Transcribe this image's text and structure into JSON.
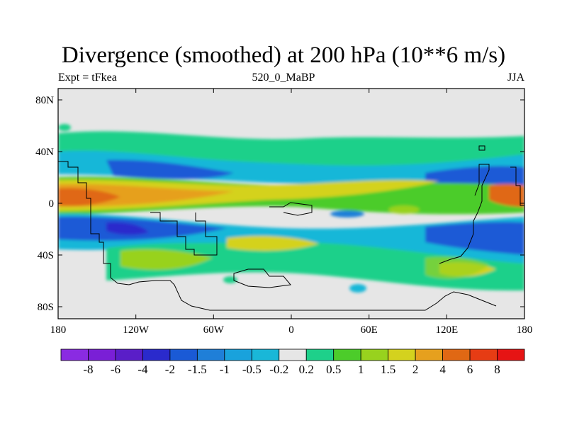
{
  "title": "Divergence (smoothed) at 200 hPa (10**6 m/s)",
  "left_label": "Expt = tFkea",
  "center_label": "520_0_MaBP",
  "right_label": "JJA",
  "lat_ticks": [
    "80N",
    "40N",
    "0",
    "40S",
    "80S"
  ],
  "lon_ticks": [
    "180",
    "120W",
    "60W",
    "0",
    "60E",
    "120E",
    "180"
  ],
  "colorbar": {
    "colors": [
      "#8a2be2",
      "#7a1fd6",
      "#5a1ec8",
      "#2a2acc",
      "#1a5ad6",
      "#1f7fd8",
      "#19a2dc",
      "#19b7d8",
      "#e6e6e6",
      "#1ed08a",
      "#4ccc2a",
      "#98d21e",
      "#d4d21e",
      "#e6a01e",
      "#e06814",
      "#e63c14",
      "#e61414"
    ],
    "labels": [
      "-8",
      "-6",
      "-4",
      "-2",
      "-1.5",
      "-1",
      "-0.5",
      "-0.2",
      "0.2",
      "0.5",
      "1",
      "1.5",
      "2",
      "4",
      "6",
      "8"
    ]
  }
}
